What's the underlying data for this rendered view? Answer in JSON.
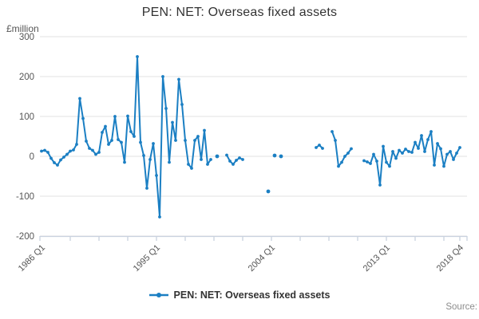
{
  "title": "PEN: NET: Overseas fixed assets",
  "source_label": "Source:",
  "legend": {
    "label": "PEN: NET: Overseas fixed assets"
  },
  "colors": {
    "series": "#1b7fc3",
    "grid": "#e2e2e2",
    "axis": "#c9d2df",
    "tick_text": "#555555",
    "title_text": "#333333"
  },
  "chart_data": {
    "type": "line",
    "title": "PEN: NET: Overseas fixed assets",
    "ylabel": "£million",
    "unit": "£million",
    "frequency": "quarterly",
    "x_start": "1986 Q1",
    "x_end": "2018 Q4",
    "ylim": [
      -200,
      300
    ],
    "y_ticks": [
      300,
      200,
      100,
      0,
      -100,
      -200
    ],
    "x_tick_labels": [
      {
        "quarter_index": 0,
        "label": "1986 Q1"
      },
      {
        "quarter_index": 36,
        "label": "1995 Q1"
      },
      {
        "quarter_index": 72,
        "label": "2004 Q1"
      },
      {
        "quarter_index": 108,
        "label": "2013 Q1"
      },
      {
        "quarter_index": 131,
        "label": "2018 Q4"
      }
    ],
    "minor_tick_every_quarters": 9,
    "grid": "horizontal",
    "legend_position": "bottom",
    "series": [
      {
        "name": "PEN: NET: Overseas fixed assets",
        "values": [
          13,
          15,
          10,
          -5,
          -16,
          -22,
          -9,
          -2,
          5,
          13,
          16,
          30,
          145,
          95,
          38,
          20,
          15,
          5,
          10,
          60,
          75,
          30,
          40,
          100,
          42,
          35,
          -15,
          101,
          62,
          50,
          250,
          35,
          2,
          -80,
          -8,
          32,
          -48,
          -152,
          200,
          120,
          -15,
          85,
          40,
          193,
          130,
          40,
          -20,
          -30,
          40,
          50,
          -8,
          65,
          -20,
          -8,
          null,
          0,
          null,
          null,
          3,
          -12,
          -20,
          -10,
          -4,
          -8,
          null,
          null,
          null,
          null,
          null,
          null,
          null,
          -88,
          null,
          2,
          null,
          0,
          null,
          null,
          null,
          null,
          null,
          null,
          null,
          null,
          null,
          null,
          22,
          28,
          20,
          null,
          null,
          62,
          40,
          -25,
          -15,
          0,
          8,
          19,
          null,
          null,
          null,
          -11,
          -14,
          -18,
          5,
          -12,
          -72,
          25,
          -15,
          -25,
          12,
          -5,
          15,
          8,
          18,
          12,
          10,
          35,
          20,
          52,
          12,
          42,
          62,
          -22,
          32,
          19,
          -25,
          5,
          12,
          -8,
          8,
          22
        ]
      }
    ]
  }
}
